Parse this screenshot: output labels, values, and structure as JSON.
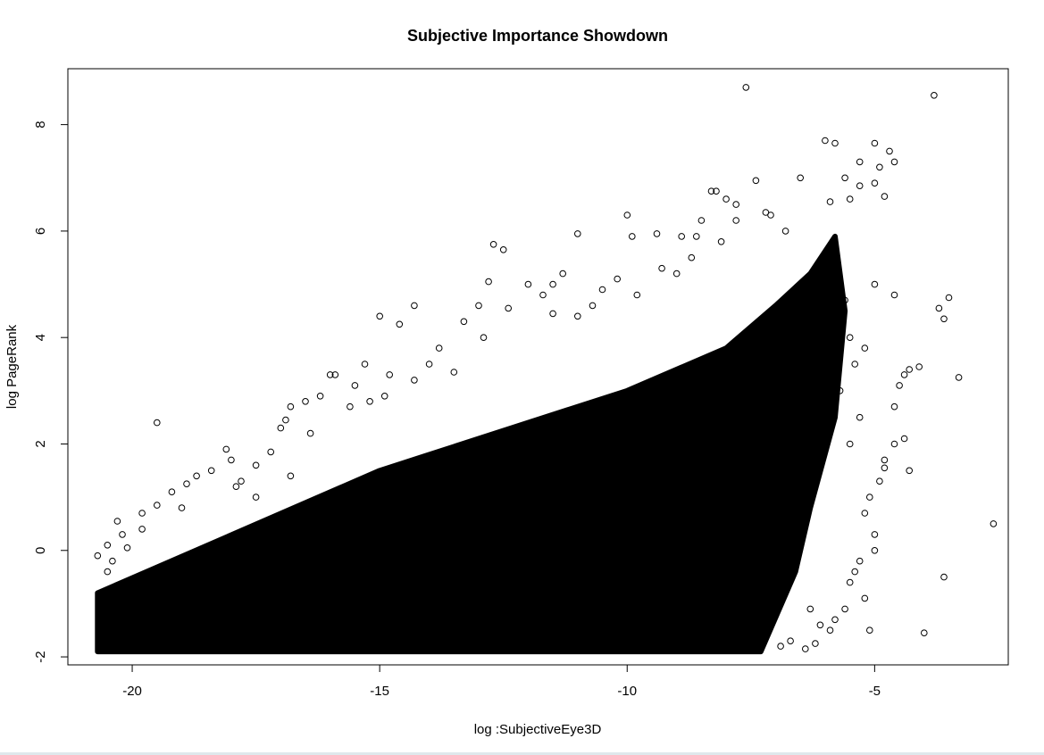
{
  "chart_data": {
    "type": "scatter",
    "title": "Subjective Importance Showdown",
    "xlabel": "log :SubjectiveEye3D",
    "ylabel": "log PageRank",
    "xlim": [
      -21.3,
      -2.3
    ],
    "ylim": [
      -2.15,
      9.05
    ],
    "x_ticks": [
      -20,
      -15,
      -10,
      -5
    ],
    "x_tick_labels": [
      "-20",
      "-15",
      "-10",
      "-5"
    ],
    "y_ticks": [
      -2,
      0,
      2,
      4,
      6,
      8
    ],
    "y_tick_labels": [
      "-2",
      "0",
      "2",
      "4",
      "6",
      "8"
    ],
    "grid": false,
    "legend": "none",
    "marker": "open-circle",
    "point_color": "#000000",
    "dense_region": {
      "description_polygon": [
        [
          -20.7,
          -1.9
        ],
        [
          -20.7,
          -0.8
        ],
        [
          -15.0,
          1.5
        ],
        [
          -10.0,
          3.0
        ],
        [
          -8.0,
          3.8
        ],
        [
          -7.0,
          4.6
        ],
        [
          -6.3,
          5.2
        ],
        [
          -5.8,
          5.9
        ],
        [
          -5.6,
          4.5
        ],
        [
          -5.8,
          2.5
        ],
        [
          -6.3,
          0.8
        ],
        [
          -6.6,
          -0.4
        ],
        [
          -7.3,
          -1.9
        ]
      ]
    },
    "points": [
      [
        -7.6,
        8.7
      ],
      [
        -3.8,
        8.55
      ],
      [
        -6.0,
        7.7
      ],
      [
        -5.8,
        7.65
      ],
      [
        -5.0,
        7.65
      ],
      [
        -4.7,
        7.5
      ],
      [
        -5.3,
        7.3
      ],
      [
        -4.6,
        7.3
      ],
      [
        -4.9,
        7.2
      ],
      [
        -5.6,
        7.0
      ],
      [
        -6.5,
        7.0
      ],
      [
        -5.0,
        6.9
      ],
      [
        -5.3,
        6.85
      ],
      [
        -7.4,
        6.95
      ],
      [
        -8.3,
        6.75
      ],
      [
        -8.2,
        6.75
      ],
      [
        -7.8,
        6.5
      ],
      [
        -4.8,
        6.65
      ],
      [
        -5.5,
        6.6
      ],
      [
        -5.9,
        6.55
      ],
      [
        -10.0,
        6.3
      ],
      [
        -7.2,
        6.35
      ],
      [
        -8.9,
        5.9
      ],
      [
        -9.9,
        5.9
      ],
      [
        -11.0,
        5.95
      ],
      [
        -9.4,
        5.95
      ],
      [
        -12.7,
        5.75
      ],
      [
        -12.5,
        5.65
      ],
      [
        -8.6,
        5.9
      ],
      [
        -8.1,
        5.8
      ],
      [
        -11.3,
        5.2
      ],
      [
        -11.5,
        5.0
      ],
      [
        -12.8,
        5.05
      ],
      [
        -10.2,
        5.1
      ],
      [
        -9.8,
        4.8
      ],
      [
        -3.5,
        4.75
      ],
      [
        -3.7,
        4.55
      ],
      [
        -3.6,
        4.35
      ],
      [
        -4.6,
        4.8
      ],
      [
        -5.0,
        5.0
      ],
      [
        -14.3,
        4.6
      ],
      [
        -15.0,
        4.4
      ],
      [
        -14.6,
        4.25
      ],
      [
        -13.0,
        4.6
      ],
      [
        -12.4,
        4.55
      ],
      [
        -11.5,
        4.45
      ],
      [
        -11.0,
        4.4
      ],
      [
        -10.7,
        4.6
      ],
      [
        -16.0,
        3.3
      ],
      [
        -15.9,
        3.3
      ],
      [
        -15.3,
        3.5
      ],
      [
        -14.8,
        3.3
      ],
      [
        -14.3,
        3.2
      ],
      [
        -14.0,
        3.5
      ],
      [
        -13.5,
        3.35
      ],
      [
        -3.3,
        3.25
      ],
      [
        -4.1,
        3.45
      ],
      [
        -4.3,
        3.4
      ],
      [
        -4.5,
        3.1
      ],
      [
        -4.4,
        3.3
      ],
      [
        -16.5,
        2.8
      ],
      [
        -16.2,
        2.9
      ],
      [
        -15.6,
        2.7
      ],
      [
        -15.2,
        2.8
      ],
      [
        -14.9,
        2.9
      ],
      [
        -19.5,
        2.4
      ],
      [
        -16.8,
        2.7
      ],
      [
        -16.9,
        2.45
      ],
      [
        -17.0,
        2.3
      ],
      [
        -18.1,
        1.9
      ],
      [
        -17.2,
        1.85
      ],
      [
        -17.5,
        1.6
      ],
      [
        -18.0,
        1.7
      ],
      [
        -18.4,
        1.5
      ],
      [
        -18.7,
        1.4
      ],
      [
        -18.9,
        1.25
      ],
      [
        -19.2,
        1.1
      ],
      [
        -19.5,
        0.85
      ],
      [
        -19.8,
        0.7
      ],
      [
        -20.3,
        0.55
      ],
      [
        -19.8,
        0.4
      ],
      [
        -20.2,
        0.3
      ],
      [
        -20.5,
        0.1
      ],
      [
        -20.7,
        -0.1
      ],
      [
        -20.5,
        -0.4
      ],
      [
        -17.8,
        1.3
      ],
      [
        -17.5,
        1.0
      ],
      [
        -16.8,
        1.4
      ],
      [
        -4.6,
        2.7
      ],
      [
        -4.6,
        2.0
      ],
      [
        -4.8,
        1.7
      ],
      [
        -4.9,
        1.3
      ],
      [
        -5.1,
        1.0
      ],
      [
        -5.2,
        0.7
      ],
      [
        -4.8,
        1.55
      ],
      [
        -5.0,
        0.3
      ],
      [
        -5.0,
        0.0
      ],
      [
        -5.3,
        -0.2
      ],
      [
        -5.4,
        -0.4
      ],
      [
        -5.5,
        -0.6
      ],
      [
        -5.2,
        -0.9
      ],
      [
        -5.6,
        -1.1
      ],
      [
        -5.8,
        -1.3
      ],
      [
        -5.9,
        -1.5
      ],
      [
        -5.1,
        -1.5
      ],
      [
        -6.2,
        -1.75
      ],
      [
        -6.4,
        -1.85
      ],
      [
        -2.6,
        0.5
      ],
      [
        -3.6,
        -0.5
      ],
      [
        -4.0,
        -1.55
      ],
      [
        -4.4,
        2.1
      ],
      [
        -4.3,
        1.5
      ],
      [
        -5.5,
        2.0
      ],
      [
        -5.3,
        2.5
      ],
      [
        -5.7,
        3.0
      ],
      [
        -5.4,
        3.5
      ],
      [
        -5.2,
        3.8
      ],
      [
        -5.5,
        4.0
      ],
      [
        -5.8,
        4.3
      ],
      [
        -5.6,
        4.7
      ],
      [
        -7.8,
        6.2
      ],
      [
        -8.0,
        6.6
      ],
      [
        -8.5,
        6.2
      ],
      [
        -9.0,
        5.2
      ],
      [
        -9.3,
        5.3
      ],
      [
        -8.7,
        5.5
      ],
      [
        -7.1,
        6.3
      ],
      [
        -6.8,
        6.0
      ],
      [
        -12.0,
        5.0
      ],
      [
        -11.7,
        4.8
      ],
      [
        -10.5,
        4.9
      ],
      [
        -13.3,
        4.3
      ],
      [
        -13.8,
        3.8
      ],
      [
        -12.9,
        4.0
      ],
      [
        -15.5,
        3.1
      ],
      [
        -16.4,
        2.2
      ],
      [
        -17.9,
        1.2
      ],
      [
        -19.0,
        0.8
      ],
      [
        -20.1,
        0.05
      ],
      [
        -20.4,
        -0.2
      ],
      [
        -6.7,
        -1.7
      ],
      [
        -6.9,
        -1.8
      ],
      [
        -6.1,
        -1.4
      ],
      [
        -6.3,
        -1.1
      ]
    ]
  }
}
